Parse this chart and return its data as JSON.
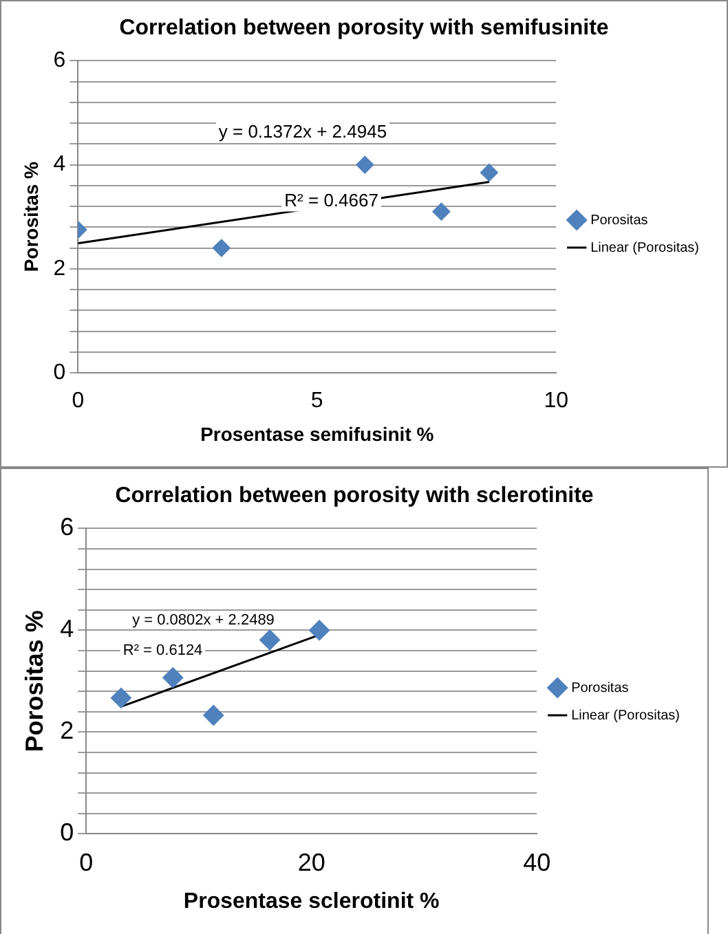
{
  "chart_data": [
    {
      "type": "scatter",
      "title": "Correlation between porosity with semifusinite",
      "xlabel": "Prosentase semifusinit %",
      "ylabel": "Porositas %",
      "xlim": [
        0,
        10
      ],
      "xticks": [
        0,
        5,
        10
      ],
      "ylim": [
        0,
        6
      ],
      "yticks": [
        0,
        {
          "value": 0.4,
          "label": null
        },
        {
          "value": 0.8,
          "label": null
        },
        {
          "value": 1.2,
          "label": null
        },
        {
          "value": 1.6,
          "label": null
        },
        2,
        {
          "value": 2.4,
          "label": null
        },
        {
          "value": 2.8,
          "label": null
        },
        {
          "value": 3.2,
          "label": null
        },
        {
          "value": 3.6,
          "label": null
        },
        4,
        {
          "value": 4.4,
          "label": null
        },
        {
          "value": 4.8,
          "label": null
        },
        {
          "value": 5.2,
          "label": null
        },
        {
          "value": 5.6,
          "label": null
        },
        6
      ],
      "grid": "y",
      "legend": "right",
      "series": [
        {
          "name": "Porositas",
          "marker": "diamond",
          "color": "#4f81bd",
          "x": [
            0,
            3.0,
            6.0,
            7.6,
            8.6
          ],
          "values": [
            2.75,
            2.4,
            4.0,
            3.1,
            3.85
          ]
        },
        {
          "name": "Linear (Porositas)",
          "type": "line",
          "color": "#000000",
          "x": [
            0,
            8.6
          ],
          "values": [
            2.49,
            3.67
          ]
        }
      ],
      "annotations": [
        "y = 0.1372x + 2.4945",
        "R² = 0.4667"
      ]
    },
    {
      "type": "scatter",
      "title": "Correlation between porosity with sclerotinite",
      "xlabel": "Prosentase sclerotinit %",
      "ylabel": "Porositas %",
      "xlim": [
        0,
        40
      ],
      "xticks": [
        0,
        20,
        40
      ],
      "ylim": [
        0,
        6
      ],
      "yticks": [
        0,
        {
          "value": 0.4,
          "label": null
        },
        {
          "value": 0.8,
          "label": null
        },
        {
          "value": 1.2,
          "label": null
        },
        {
          "value": 1.6,
          "label": null
        },
        2,
        {
          "value": 2.4,
          "label": null
        },
        {
          "value": 2.8,
          "label": null
        },
        {
          "value": 3.2,
          "label": null
        },
        {
          "value": 3.6,
          "label": null
        },
        4,
        {
          "value": 4.4,
          "label": null
        },
        {
          "value": 4.8,
          "label": null
        },
        {
          "value": 5.2,
          "label": null
        },
        {
          "value": 5.6,
          "label": null
        },
        6
      ],
      "grid": "y",
      "legend": "right",
      "series": [
        {
          "name": "Porositas",
          "marker": "diamond",
          "color": "#4f81bd",
          "x": [
            3.1,
            7.7,
            11.3,
            16.3,
            20.7
          ],
          "values": [
            2.67,
            3.07,
            2.33,
            3.81,
            4.0
          ]
        },
        {
          "name": "Linear (Porositas)",
          "type": "line",
          "color": "#000000",
          "x": [
            3.1,
            20.7
          ],
          "values": [
            2.5,
            3.91
          ]
        }
      ],
      "annotations": [
        "y = 0.0802x + 2.2489",
        "R² = 0.6124"
      ]
    }
  ]
}
